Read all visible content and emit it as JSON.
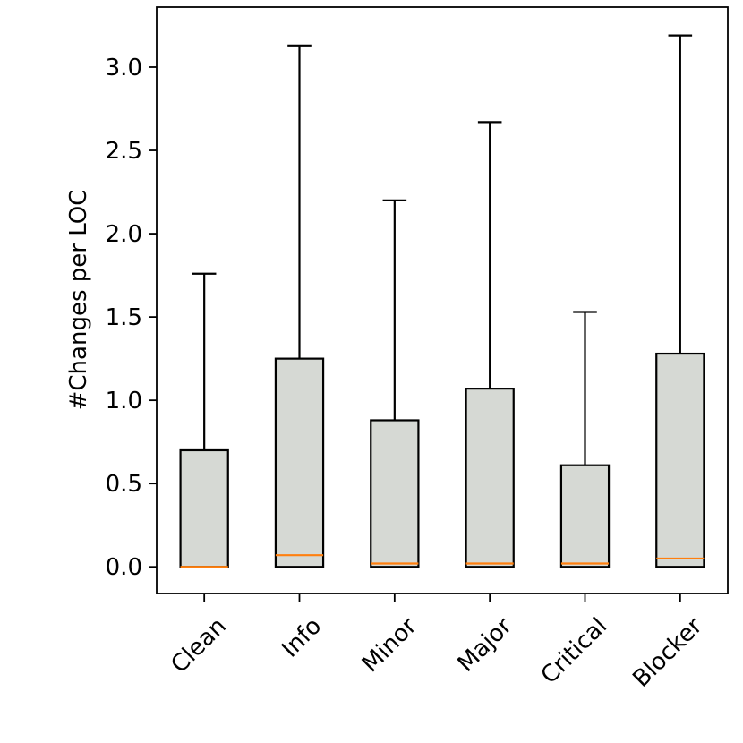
{
  "chart_data": {
    "type": "box",
    "title": "",
    "xlabel": "",
    "ylabel": "#Changes per LOC",
    "ylim": [
      -0.16,
      3.36
    ],
    "yticks": [
      "0.0",
      "0.5",
      "1.0",
      "1.5",
      "2.0",
      "2.5",
      "3.0"
    ],
    "yticks_values": [
      0.0,
      0.5,
      1.0,
      1.5,
      2.0,
      2.5,
      3.0
    ],
    "categories": [
      "Clean",
      "Info",
      "Minor",
      "Major",
      "Critical",
      "Blocker"
    ],
    "boxes": [
      {
        "name": "Clean",
        "whisker_low": 0.0,
        "q1": 0.0,
        "median": 0.0,
        "q3": 0.7,
        "whisker_high": 1.76
      },
      {
        "name": "Info",
        "whisker_low": 0.0,
        "q1": 0.0,
        "median": 0.07,
        "q3": 1.25,
        "whisker_high": 3.13
      },
      {
        "name": "Minor",
        "whisker_low": 0.0,
        "q1": 0.0,
        "median": 0.02,
        "q3": 0.88,
        "whisker_high": 2.2
      },
      {
        "name": "Major",
        "whisker_low": 0.0,
        "q1": 0.0,
        "median": 0.02,
        "q3": 1.07,
        "whisker_high": 2.67
      },
      {
        "name": "Critical",
        "whisker_low": 0.0,
        "q1": 0.0,
        "median": 0.02,
        "q3": 0.61,
        "whisker_high": 1.53
      },
      {
        "name": "Blocker",
        "whisker_low": 0.0,
        "q1": 0.0,
        "median": 0.05,
        "q3": 1.28,
        "whisker_high": 3.19
      }
    ],
    "colors": {
      "box_fill": "#d6d9d4",
      "box_edge": "#000000",
      "median": "#ff7f0e",
      "whisker": "#000000",
      "axis": "#000000"
    },
    "grid": false,
    "legend": "none"
  }
}
